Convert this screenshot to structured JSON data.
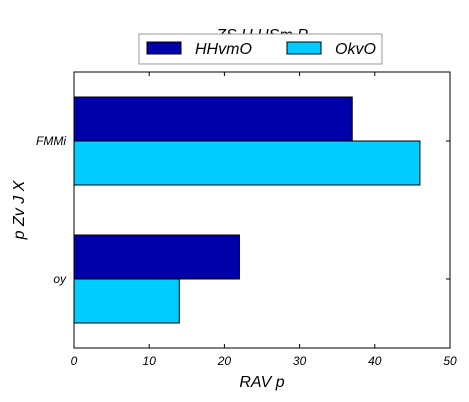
{
  "chart_data": {
    "type": "bar",
    "orientation": "horizontal",
    "title": "ZS H HSm P",
    "xlabel": "RAV p",
    "ylabel": "p Zv J  X",
    "categories": [
      "FMMi",
      "oy"
    ],
    "series": [
      {
        "name": "HHvmO",
        "values": [
          37,
          22
        ],
        "color": "#0000aa"
      },
      {
        "name": "OkvO",
        "values": [
          46,
          14
        ],
        "color": "#00ccff"
      }
    ],
    "xlim": [
      0,
      50
    ],
    "xticks": [
      0,
      10,
      20,
      30,
      40,
      50
    ],
    "grid": false,
    "legend_position": "top-center"
  }
}
